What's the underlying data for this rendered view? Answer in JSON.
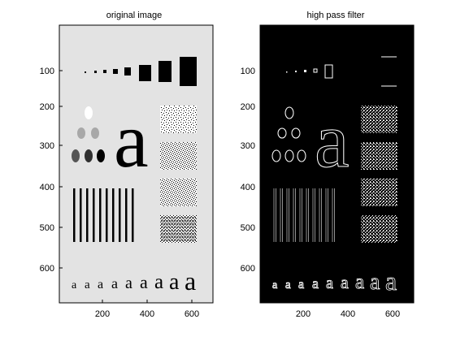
{
  "figure": {
    "panels": [
      {
        "title": "original image",
        "x_ticks": [
          "200",
          "400",
          "600"
        ],
        "y_ticks": [
          "100",
          "200",
          "300",
          "400",
          "500",
          "600"
        ]
      },
      {
        "title": "high pass filter",
        "x_ticks": [
          "200",
          "400",
          "600"
        ],
        "y_ticks": [
          "100",
          "200",
          "300",
          "400",
          "500",
          "600"
        ]
      }
    ],
    "image_glyph": "a",
    "colors": {
      "original_background": "#e3e3e3",
      "filtered_background": "#000000",
      "foreground_dark": "#000000",
      "foreground_light": "#ffffff"
    }
  }
}
